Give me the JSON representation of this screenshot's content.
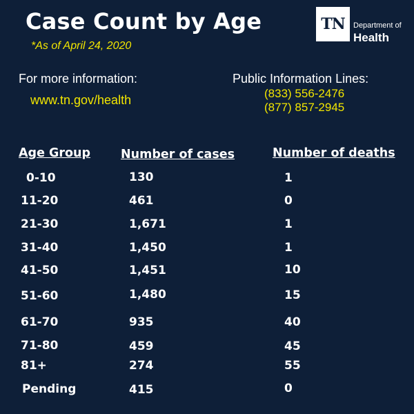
{
  "title": "Case Count by Age",
  "as_of": "*As of April 24, 2020",
  "logo": {
    "abbr": "TN",
    "dept": "Department of",
    "health": "Health"
  },
  "info": {
    "label": "For more information:",
    "url": "www.tn.gov/health",
    "phone_label": "Public Information Lines:",
    "phones": [
      "(833) 556-2476",
      "(877) 857-2945"
    ]
  },
  "table": {
    "headers": [
      "Age Group",
      "Number of cases",
      "Number of deaths"
    ],
    "rows": [
      [
        "0-10",
        "130",
        "1"
      ],
      [
        "11-20",
        "461",
        "0"
      ],
      [
        "21-30",
        "1,671",
        "1"
      ],
      [
        "31-40",
        "1,450",
        "1"
      ],
      [
        "41-50",
        "1,451",
        "10"
      ],
      [
        "51-60",
        "1,480",
        "15"
      ],
      [
        "61-70",
        "935",
        "40"
      ],
      [
        "71-80",
        "459",
        "45"
      ],
      [
        "81+",
        "274",
        "55"
      ],
      [
        "Pending",
        "415",
        "0"
      ]
    ]
  },
  "colors": {
    "background": "#0e1f38",
    "accent": "#f3e600",
    "text": "#ffffff"
  }
}
